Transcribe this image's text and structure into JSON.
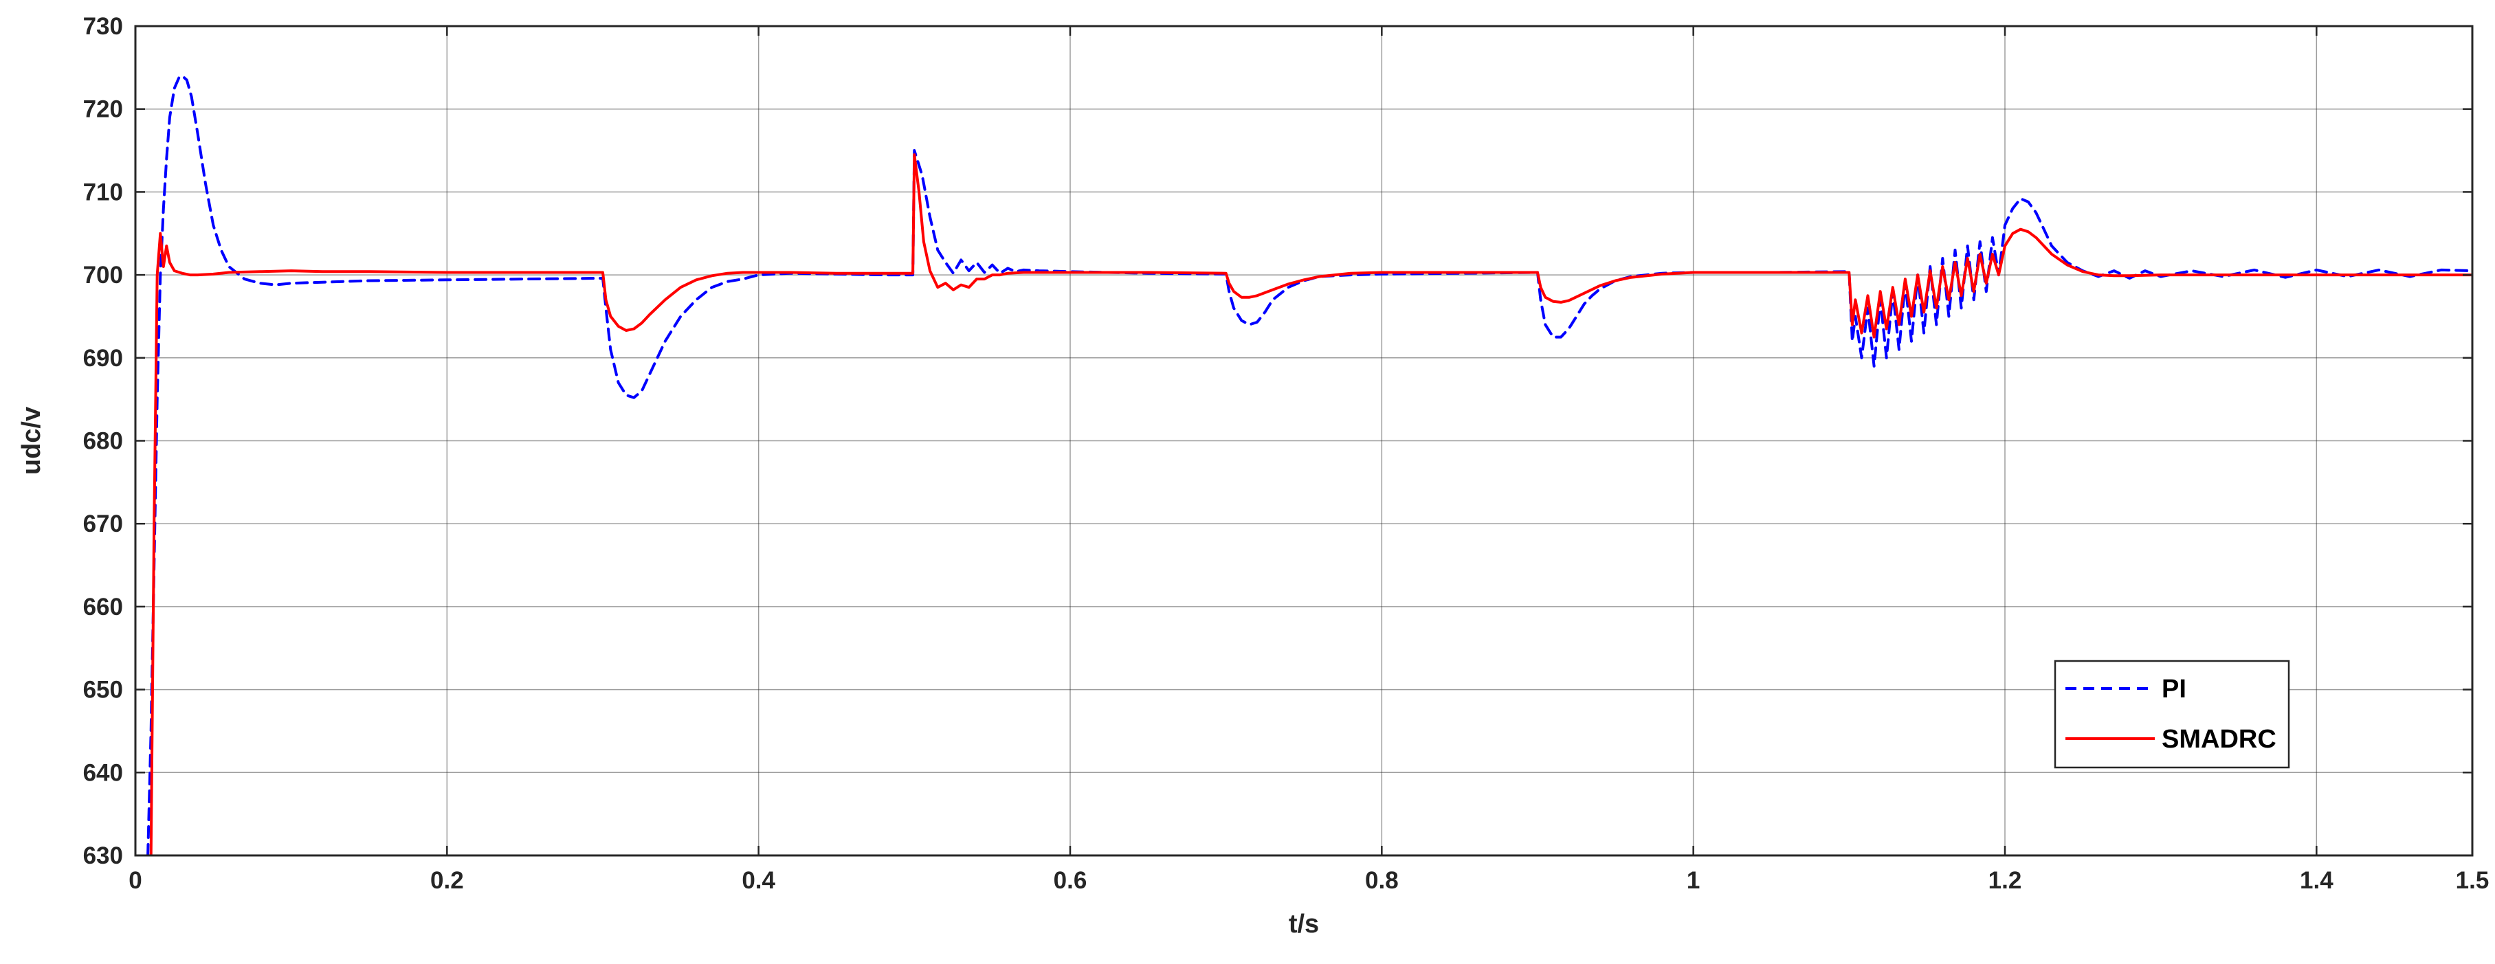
{
  "chart_data": {
    "type": "line",
    "title": "",
    "xlabel": "t/s",
    "ylabel": "udc/v",
    "xlim": [
      0,
      1.5
    ],
    "ylim": [
      630,
      730
    ],
    "xticks": [
      "0",
      "0.2",
      "0.4",
      "0.6",
      "0.8",
      "1",
      "1.2",
      "1.4",
      "1.5"
    ],
    "yticks": [
      "630",
      "640",
      "650",
      "660",
      "670",
      "680",
      "690",
      "700",
      "710",
      "720",
      "730"
    ],
    "grid": true,
    "legend_position": "bottom-right",
    "series": [
      {
        "name": "PI",
        "color": "#0000ff",
        "style": "dashed",
        "x": [
          0.008,
          0.01,
          0.012,
          0.014,
          0.016,
          0.018,
          0.02,
          0.022,
          0.025,
          0.028,
          0.03,
          0.033,
          0.036,
          0.04,
          0.045,
          0.05,
          0.055,
          0.06,
          0.07,
          0.08,
          0.09,
          0.1,
          0.15,
          0.2,
          0.25,
          0.3,
          0.302,
          0.305,
          0.31,
          0.315,
          0.32,
          0.325,
          0.33,
          0.34,
          0.35,
          0.36,
          0.37,
          0.38,
          0.39,
          0.4,
          0.42,
          0.45,
          0.48,
          0.499,
          0.5,
          0.505,
          0.51,
          0.515,
          0.52,
          0.525,
          0.53,
          0.535,
          0.54,
          0.545,
          0.55,
          0.555,
          0.56,
          0.565,
          0.57,
          0.58,
          0.6,
          0.65,
          0.7,
          0.702,
          0.705,
          0.71,
          0.715,
          0.72,
          0.725,
          0.73,
          0.74,
          0.75,
          0.76,
          0.78,
          0.8,
          0.85,
          0.9,
          0.902,
          0.905,
          0.91,
          0.915,
          0.92,
          0.925,
          0.93,
          0.935,
          0.94,
          0.95,
          0.96,
          0.98,
          1.0,
          1.05,
          1.1,
          1.102,
          1.104,
          1.108,
          1.112,
          1.116,
          1.12,
          1.124,
          1.128,
          1.132,
          1.136,
          1.14,
          1.144,
          1.148,
          1.152,
          1.156,
          1.16,
          1.164,
          1.168,
          1.172,
          1.176,
          1.18,
          1.184,
          1.188,
          1.192,
          1.196,
          1.2,
          1.205,
          1.21,
          1.215,
          1.22,
          1.225,
          1.23,
          1.24,
          1.25,
          1.26,
          1.27,
          1.28,
          1.29,
          1.3,
          1.32,
          1.34,
          1.36,
          1.38,
          1.4,
          1.42,
          1.44,
          1.46,
          1.48,
          1.5
        ],
        "y": [
          630,
          645,
          665,
          685,
          700,
          708,
          714,
          719,
          722.5,
          723.8,
          724,
          723.5,
          721.5,
          717,
          711,
          706,
          703,
          701,
          699.5,
          699,
          698.8,
          699,
          699.3,
          699.4,
          699.5,
          699.6,
          696,
          691,
          687,
          685.5,
          685.2,
          686,
          688,
          692,
          695,
          697,
          698.5,
          699.2,
          699.5,
          700,
          700.2,
          700.1,
          700,
          700,
          715,
          712,
          707,
          703,
          701.5,
          700.2,
          701.8,
          700.5,
          701.5,
          700.3,
          701.2,
          700.2,
          700.8,
          700.4,
          700.6,
          700.5,
          700.4,
          700.2,
          700.1,
          698,
          696,
          694.5,
          694,
          694.3,
          695.5,
          697,
          698.5,
          699.3,
          699.8,
          700,
          700.1,
          700.2,
          700.3,
          697,
          694,
          692.5,
          692.5,
          693.5,
          695,
          696.5,
          697.5,
          698.3,
          699.3,
          699.8,
          700.2,
          700.3,
          700.3,
          700.4,
          692,
          695,
          690,
          696,
          689,
          697,
          690,
          698,
          691,
          699,
          692,
          700,
          693,
          701,
          694,
          702,
          695,
          703,
          696,
          703.5,
          697,
          704,
          698,
          704.5,
          700,
          706,
          708,
          709.2,
          708.8,
          707.5,
          705.5,
          703.5,
          701.5,
          700.5,
          699.8,
          700.5,
          699.6,
          700.5,
          699.8,
          700.5,
          699.8,
          700.6,
          699.7,
          700.6,
          699.8,
          700.6,
          699.8,
          700.6,
          700.5
        ]
      },
      {
        "name": "SMADRC",
        "color": "#ff0000",
        "style": "solid",
        "x": [
          0.01,
          0.012,
          0.014,
          0.016,
          0.018,
          0.02,
          0.022,
          0.025,
          0.03,
          0.035,
          0.04,
          0.05,
          0.06,
          0.08,
          0.1,
          0.12,
          0.15,
          0.2,
          0.25,
          0.3,
          0.302,
          0.305,
          0.31,
          0.315,
          0.32,
          0.325,
          0.33,
          0.34,
          0.35,
          0.36,
          0.37,
          0.38,
          0.39,
          0.4,
          0.42,
          0.45,
          0.48,
          0.499,
          0.5,
          0.503,
          0.506,
          0.51,
          0.515,
          0.52,
          0.525,
          0.53,
          0.535,
          0.54,
          0.545,
          0.55,
          0.555,
          0.56,
          0.57,
          0.58,
          0.6,
          0.65,
          0.7,
          0.702,
          0.705,
          0.71,
          0.715,
          0.72,
          0.73,
          0.74,
          0.75,
          0.76,
          0.78,
          0.8,
          0.85,
          0.9,
          0.902,
          0.905,
          0.91,
          0.915,
          0.92,
          0.93,
          0.94,
          0.95,
          0.96,
          0.98,
          1.0,
          1.05,
          1.1,
          1.102,
          1.104,
          1.108,
          1.112,
          1.116,
          1.12,
          1.124,
          1.128,
          1.132,
          1.136,
          1.14,
          1.144,
          1.148,
          1.152,
          1.156,
          1.16,
          1.164,
          1.168,
          1.172,
          1.176,
          1.18,
          1.184,
          1.188,
          1.192,
          1.196,
          1.2,
          1.205,
          1.21,
          1.215,
          1.22,
          1.225,
          1.23,
          1.24,
          1.25,
          1.26,
          1.27,
          1.28,
          1.3,
          1.35,
          1.4,
          1.45,
          1.5
        ],
        "y": [
          630,
          670,
          700,
          705,
          701,
          703.5,
          701.5,
          700.5,
          700.2,
          700,
          700,
          700.1,
          700.3,
          700.4,
          700.5,
          700.4,
          700.4,
          700.3,
          700.3,
          700.3,
          697,
          695,
          693.8,
          693.3,
          693.5,
          694.2,
          695.2,
          697,
          698.5,
          699.4,
          699.9,
          700.2,
          700.3,
          700.3,
          700.3,
          700.2,
          700.2,
          700.2,
          714.5,
          710,
          704,
          700.5,
          698.5,
          699,
          698.2,
          698.8,
          698.5,
          699.5,
          699.5,
          700,
          700,
          700.2,
          700.3,
          700.3,
          700.3,
          700.3,
          700.2,
          699,
          698,
          697.3,
          697.3,
          697.5,
          698.2,
          698.9,
          699.4,
          699.8,
          700.2,
          700.3,
          700.3,
          700.3,
          698.5,
          697.3,
          696.8,
          696.7,
          696.9,
          697.8,
          698.7,
          699.3,
          699.7,
          700.1,
          700.3,
          700.3,
          700.3,
          694,
          697,
          693,
          697.5,
          692.5,
          698,
          693.5,
          698.5,
          694,
          699.5,
          695,
          700,
          695.5,
          700.5,
          696,
          701,
          697,
          701.5,
          697.5,
          702,
          698,
          702.5,
          699,
          702.5,
          700,
          703.5,
          705,
          705.5,
          705.2,
          704.5,
          703.5,
          702.5,
          701.2,
          700.4,
          700,
          699.9,
          699.9,
          700,
          700,
          700,
          700,
          700
        ]
      }
    ]
  }
}
